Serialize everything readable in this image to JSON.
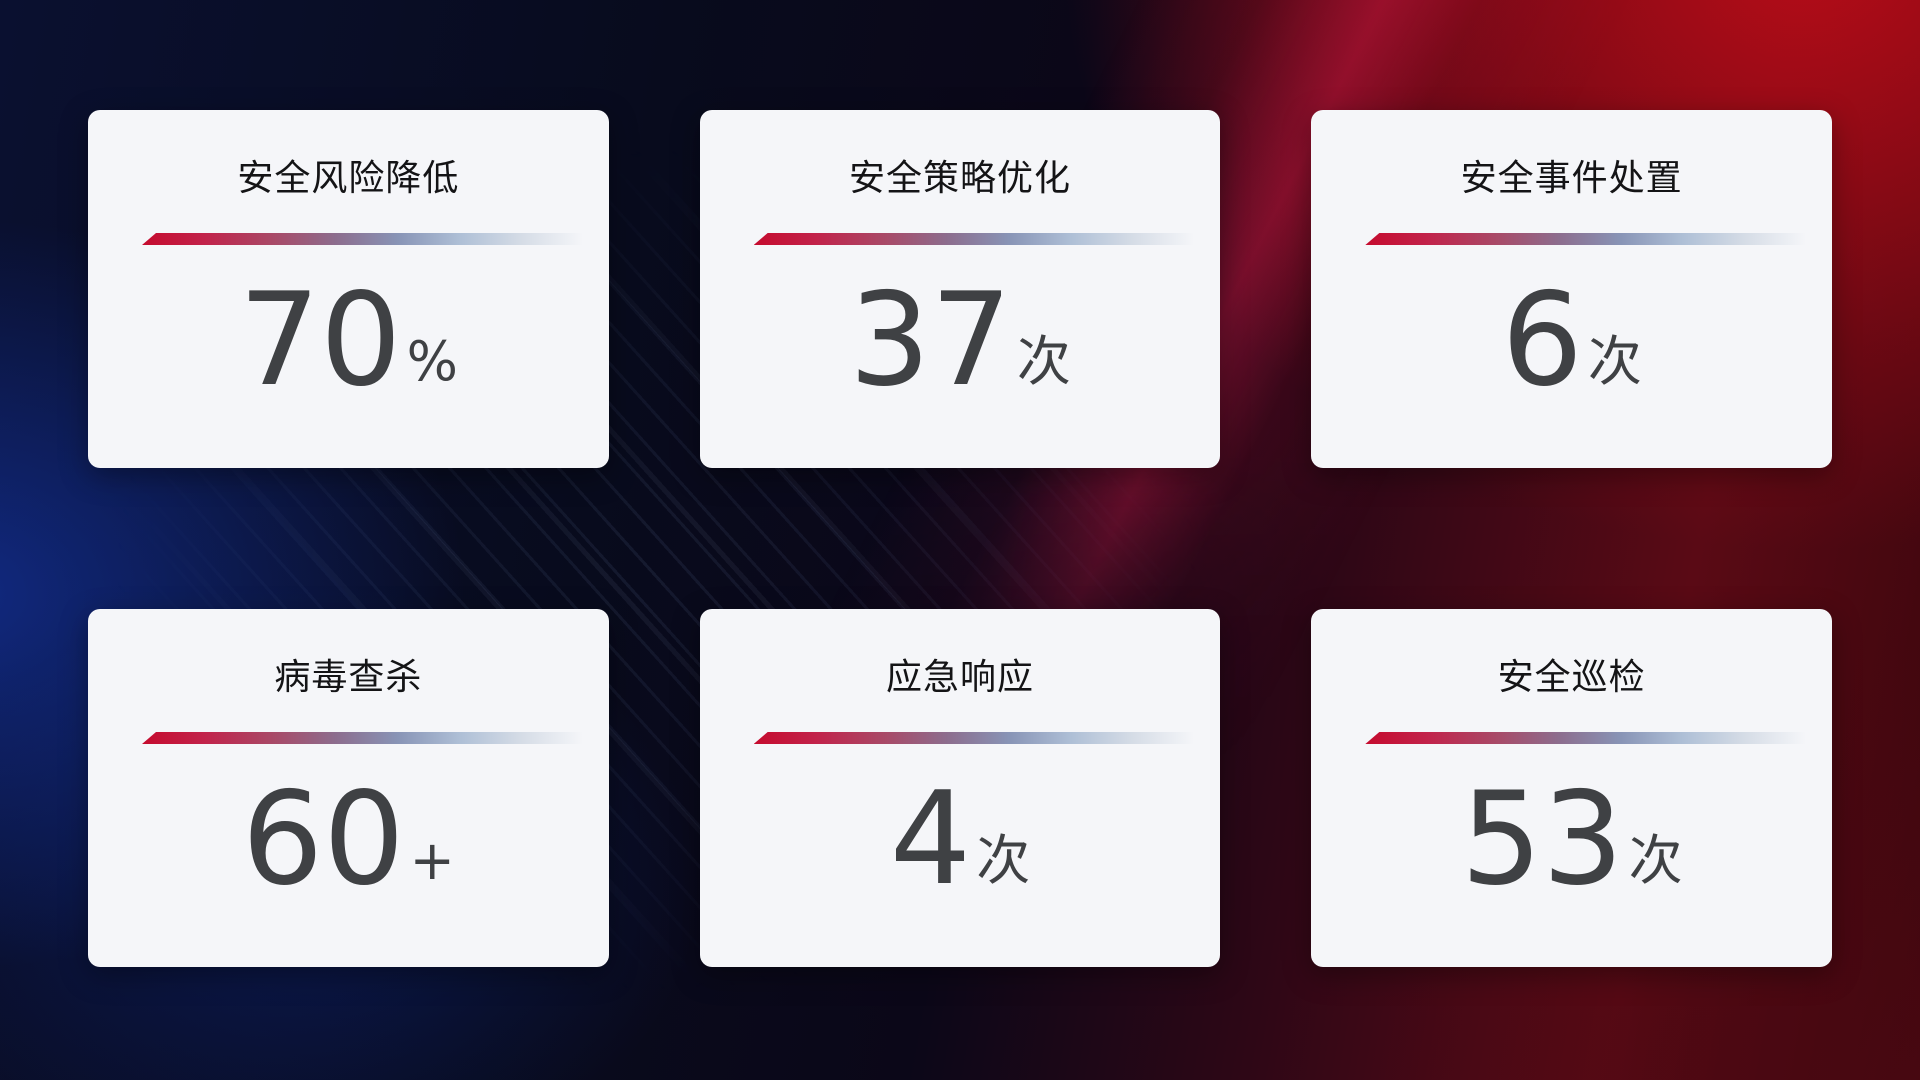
{
  "theme": {
    "card_background": "#f5f6f9",
    "title_color": "#141416",
    "value_color": "#3f4144",
    "accent_gradient_start": "#c50b2e",
    "accent_gradient_mid": "#8894b6",
    "accent_gradient_end": "#d5dce6",
    "background_blue": "#0a1030",
    "background_red": "#ba0c18"
  },
  "cards": [
    {
      "id": "risk-reduction",
      "title": "安全风险降低",
      "value": "70",
      "unit": "%"
    },
    {
      "id": "policy-optimization",
      "title": "安全策略优化",
      "value": "37",
      "unit": "次"
    },
    {
      "id": "incident-handling",
      "title": "安全事件处置",
      "value": "6",
      "unit": "次"
    },
    {
      "id": "virus-scan",
      "title": "病毒查杀",
      "value": "60",
      "unit": "+"
    },
    {
      "id": "emergency-response",
      "title": "应急响应",
      "value": "4",
      "unit": "次"
    },
    {
      "id": "security-inspection",
      "title": "安全巡检",
      "value": "53",
      "unit": "次"
    }
  ]
}
